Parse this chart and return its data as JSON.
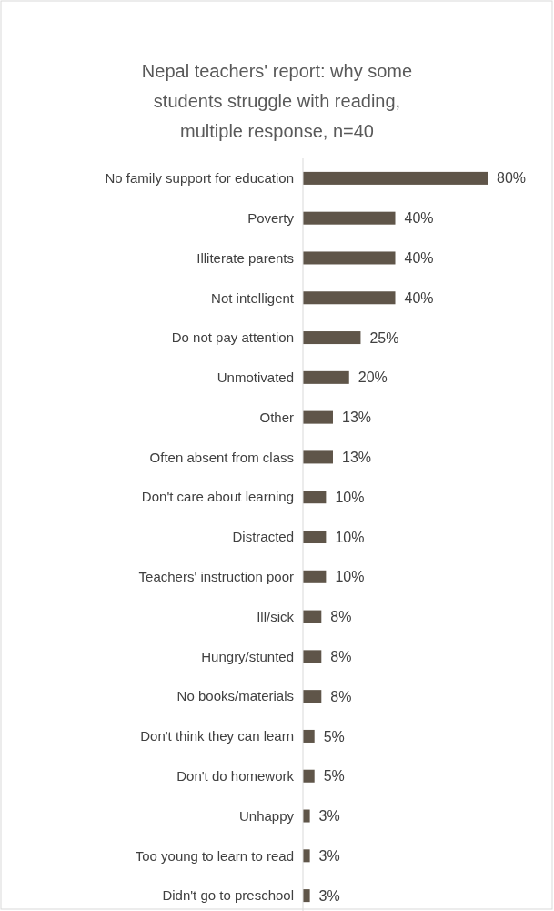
{
  "chart_data": {
    "type": "bar",
    "orientation": "horizontal",
    "title": "Nepal teachers' report: why some students struggle with reading, multiple response, n=40",
    "categories": [
      "No family support for education",
      "Poverty",
      "Illiterate parents",
      "Not intelligent",
      "Do not pay attention",
      "Unmotivated",
      "Other",
      "Often absent from class",
      "Don't care about learning",
      "Distracted",
      "Teachers' instruction poor",
      "Ill/sick",
      "Hungry/stunted",
      "No books/materials",
      "Don't think they can learn",
      "Don't do homework",
      "Unhappy",
      "Too young to learn to read",
      "Didn't go to preschool"
    ],
    "values": [
      80,
      40,
      40,
      40,
      25,
      20,
      13,
      13,
      10,
      10,
      10,
      8,
      8,
      8,
      5,
      5,
      3,
      3,
      3
    ],
    "value_labels": [
      "80%",
      "40%",
      "40%",
      "40%",
      "25%",
      "20%",
      "13%",
      "13%",
      "10%",
      "10%",
      "10%",
      "8%",
      "8%",
      "8%",
      "5%",
      "5%",
      "3%",
      "3%",
      "3%"
    ],
    "color": "#5f5549"
  }
}
